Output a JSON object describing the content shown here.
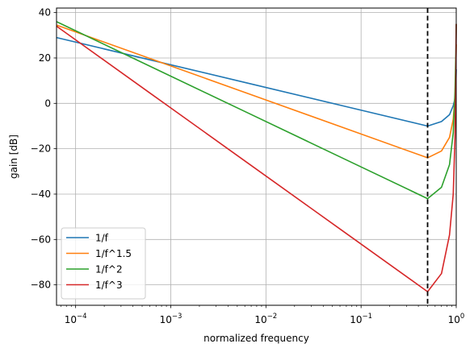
{
  "chart_data": {
    "type": "line",
    "title": "",
    "xlabel": "normalized frequency",
    "ylabel": "gain [dB]",
    "xscale": "log",
    "xlim": [
      6.3e-05,
      1
    ],
    "ylim": [
      -89,
      42
    ],
    "grid": true,
    "legend_position": "lower left",
    "x_ticks": [
      {
        "value": 0.0001,
        "base": "10",
        "exp": "−4"
      },
      {
        "value": 0.001,
        "base": "10",
        "exp": "−3"
      },
      {
        "value": 0.01,
        "base": "10",
        "exp": "−2"
      },
      {
        "value": 0.1,
        "base": "10",
        "exp": "−1"
      },
      {
        "value": 1,
        "base": "10",
        "exp": "0"
      }
    ],
    "y_ticks": [
      {
        "value": 40,
        "label": "40"
      },
      {
        "value": 20,
        "label": "20"
      },
      {
        "value": 0,
        "label": "0"
      },
      {
        "value": -20,
        "label": "−20"
      },
      {
        "value": -40,
        "label": "−40"
      },
      {
        "value": -60,
        "label": "−60"
      },
      {
        "value": -80,
        "label": "−80"
      }
    ],
    "vline": {
      "x": 0.5,
      "style": "dashed",
      "color": "#000000"
    },
    "series": [
      {
        "name": "1/f",
        "color": "#1f77b4",
        "points": [
          [
            6.3e-05,
            29.0
          ],
          [
            0.00063,
            19.0
          ],
          [
            0.0063,
            9.0
          ],
          [
            0.063,
            -1.0
          ],
          [
            0.5,
            -10.0
          ],
          [
            0.7,
            -8.0
          ],
          [
            0.85,
            -5.0
          ],
          [
            0.93,
            -1.0
          ],
          [
            0.97,
            2.0
          ],
          [
            0.99,
            8.0
          ],
          [
            1.0,
            15.0
          ]
        ]
      },
      {
        "name": "1/f^1.5",
        "color": "#ff7f0e",
        "points": [
          [
            6.3e-05,
            34.5
          ],
          [
            0.00063,
            19.5
          ],
          [
            0.0063,
            4.5
          ],
          [
            0.063,
            -10.5
          ],
          [
            0.5,
            -24.0
          ],
          [
            0.7,
            -21.0
          ],
          [
            0.85,
            -15.0
          ],
          [
            0.93,
            -7.0
          ],
          [
            0.97,
            3.0
          ],
          [
            0.99,
            15.0
          ],
          [
            1.0,
            26.0
          ]
        ]
      },
      {
        "name": "1/f^2",
        "color": "#2ca02c",
        "points": [
          [
            6.3e-05,
            36.0
          ],
          [
            0.00063,
            16.0
          ],
          [
            0.0063,
            -4.0
          ],
          [
            0.063,
            -24.0
          ],
          [
            0.5,
            -42.0
          ],
          [
            0.7,
            -37.0
          ],
          [
            0.85,
            -27.0
          ],
          [
            0.93,
            -13.0
          ],
          [
            0.97,
            5.0
          ],
          [
            0.99,
            22.0
          ],
          [
            1.0,
            35.0
          ]
        ]
      },
      {
        "name": "1/f^3",
        "color": "#d62728",
        "points": [
          [
            6.3e-05,
            34.0
          ],
          [
            0.00063,
            4.0
          ],
          [
            0.0063,
            -26.0
          ],
          [
            0.063,
            -56.0
          ],
          [
            0.5,
            -83.0
          ],
          [
            0.7,
            -75.0
          ],
          [
            0.85,
            -58.0
          ],
          [
            0.93,
            -40.0
          ],
          [
            0.97,
            -15.0
          ],
          [
            0.99,
            10.0
          ],
          [
            1.0,
            35.0
          ]
        ]
      }
    ]
  }
}
